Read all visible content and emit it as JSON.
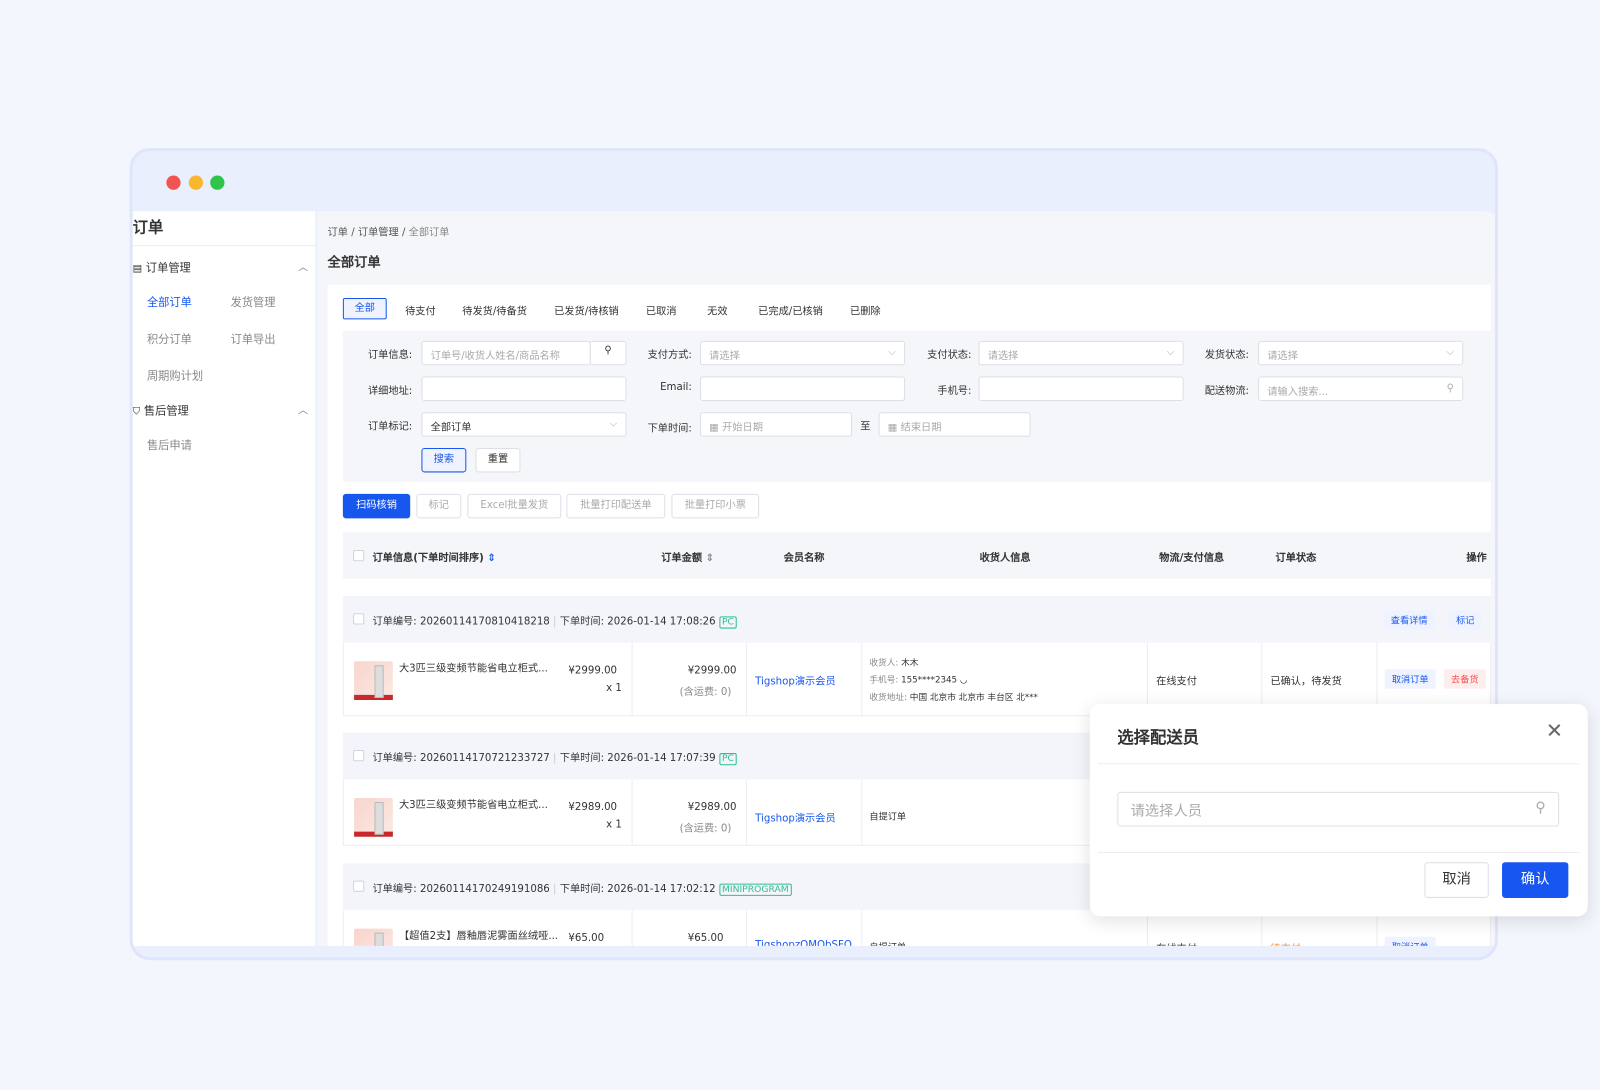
{
  "window": {
    "dots": [
      "#f25454",
      "#f8b82e",
      "#2fc44a"
    ]
  },
  "sidebar": {
    "title": "订单",
    "groups": [
      {
        "label": "订单管理",
        "icon": "document-icon",
        "items": [
          "全部订单",
          "发货管理",
          "积分订单",
          "订单导出",
          "周期购计划"
        ],
        "active": "全部订单"
      },
      {
        "label": "售后管理",
        "icon": "shield-icon",
        "items": [
          "售后申请"
        ]
      }
    ]
  },
  "breadcrumb": [
    "订单",
    "订单管理",
    "全部订单"
  ],
  "page_title": "全部订单",
  "tabs": [
    "全部",
    "待支付",
    "待发货/待备货",
    "已发货/待核销",
    "已取消",
    "无效",
    "已完成/已核销",
    "已删除"
  ],
  "filters": {
    "order_info": {
      "label": "订单信息:",
      "placeholder": "订单号/收货人姓名/商品名称"
    },
    "pay_method": {
      "label": "支付方式:",
      "placeholder": "请选择"
    },
    "pay_status": {
      "label": "支付状态:",
      "placeholder": "请选择"
    },
    "ship_status": {
      "label": "发货状态:",
      "placeholder": "请选择"
    },
    "address": {
      "label": "详细地址:"
    },
    "email": {
      "label": "Email:"
    },
    "phone": {
      "label": "手机号:"
    },
    "logistics": {
      "label": "配送物流:",
      "placeholder": "请输入搜索..."
    },
    "mark": {
      "label": "订单标记:",
      "value": "全部订单"
    },
    "time": {
      "label": "下单时间:",
      "start": "开始日期",
      "to": "至",
      "end": "结束日期"
    },
    "search": "搜索",
    "reset": "重置"
  },
  "actions": [
    "扫码核销",
    "标记",
    "Excel批量发货",
    "批量打印配送单",
    "批量打印小票"
  ],
  "columns": [
    "订单信息(下单时间排序)",
    "订单金额",
    "会员名称",
    "收货人信息",
    "物流/支付信息",
    "订单状态",
    "操作"
  ],
  "orders": [
    {
      "no_label": "订单编号:",
      "no": "20260114170810418218",
      "time_label": "下单时间:",
      "time": "2026-01-14 17:08:26",
      "source": "PC",
      "product": "大3匹三级变频节能省电立柜式...",
      "price": "¥2999.00",
      "qty": "x 1",
      "amount": "¥2999.00",
      "shipping": "(含运费: 0)",
      "member": "Tigshop演示会员",
      "receiver": {
        "name_label": "收货人:",
        "name": "木木",
        "phone_label": "手机号:",
        "phone": "155****2345",
        "addr_label": "收货地址:",
        "addr": "中国 北京市 北京市 丰台区 北***"
      },
      "payment": "在线支付",
      "status": "已确认，待发货",
      "ops": [
        "查看详情",
        "标记"
      ],
      "row_ops": [
        "取消订单",
        "去备货"
      ]
    },
    {
      "no_label": "订单编号:",
      "no": "20260114170721233727",
      "time_label": "下单时间:",
      "time": "2026-01-14 17:07:39",
      "source": "PC",
      "product": "大3匹三级变频节能省电立柜式...",
      "price": "¥2989.00",
      "qty": "x 1",
      "amount": "¥2989.00",
      "shipping": "(含运费: 0)",
      "member": "Tigshop演示会员",
      "receiver_text": "自提订单"
    },
    {
      "no_label": "订单编号:",
      "no": "20260114170249191086",
      "time_label": "下单时间:",
      "time": "2026-01-14 17:02:12",
      "source": "MINIPROGRAM",
      "product": "【超值2支】唇釉唇泥雾面丝绒哑...",
      "price": "¥65.00",
      "amount": "¥65.00",
      "member": "TigshopzQMQbSFQ",
      "receiver_text": "自提订单",
      "payment": "在线支付",
      "status": "待支付",
      "row_ops": [
        "取消订单"
      ]
    }
  ],
  "modal": {
    "title": "选择配送员",
    "placeholder": "请选择人员",
    "cancel": "取消",
    "confirm": "确认"
  },
  "colors": {
    "primary": "#1757f0",
    "danger": "#f25454",
    "warning": "#f5871f",
    "tag": "#2fbf8f"
  }
}
